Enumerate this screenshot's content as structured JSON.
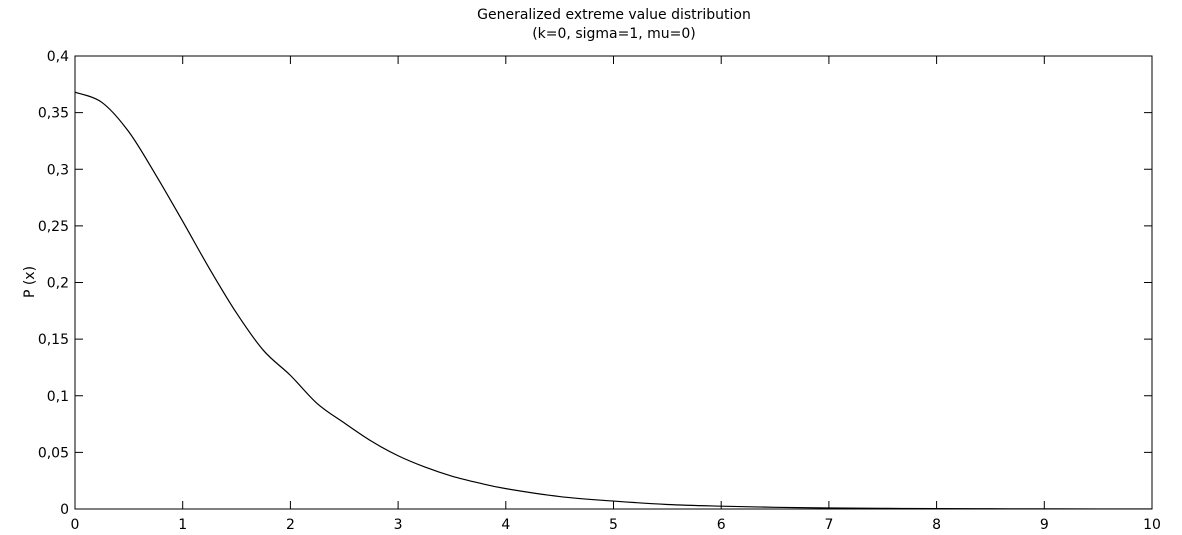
{
  "chart_data": {
    "type": "line",
    "title": "Generalized extreme value distribution",
    "subtitle": "(k=0, sigma=1, mu=0)",
    "xlabel": "",
    "ylabel": "P (x)",
    "xlim": [
      0,
      10
    ],
    "ylim": [
      0,
      0.4
    ],
    "x_ticks": [
      0,
      1,
      2,
      3,
      4,
      5,
      6,
      7,
      8,
      9,
      10
    ],
    "x_tick_labels": [
      "0",
      "1",
      "2",
      "3",
      "4",
      "5",
      "6",
      "7",
      "8",
      "9",
      "10"
    ],
    "y_ticks": [
      0,
      0.05,
      0.1,
      0.15,
      0.2,
      0.25,
      0.3,
      0.35,
      0.4
    ],
    "y_tick_labels": [
      "0",
      "0,05",
      "0,1",
      "0,15",
      "0,2",
      "0,25",
      "0,3",
      "0,35",
      "0,4"
    ],
    "grid": false,
    "line_color": "#000000",
    "series": [
      {
        "x": [
          0,
          0.25,
          0.5,
          0.75,
          1,
          1.25,
          1.5,
          1.75,
          2,
          2.25,
          2.5,
          2.75,
          3,
          3.25,
          3.5,
          3.75,
          4,
          4.5,
          5,
          5.5,
          6,
          6.5,
          7,
          7.5,
          8,
          8.5,
          9,
          9.5,
          10
        ],
        "y": [
          0.368,
          0.359,
          0.333,
          0.295,
          0.254,
          0.212,
          0.173,
          0.14,
          0.118,
          0.093,
          0.076,
          0.06,
          0.047,
          0.037,
          0.029,
          0.023,
          0.018,
          0.011,
          0.007,
          0.004,
          0.0025,
          0.0015,
          0.0009,
          0.0006,
          0.0003,
          0.0002,
          0.0001,
          7e-05,
          5e-05
        ]
      }
    ]
  }
}
